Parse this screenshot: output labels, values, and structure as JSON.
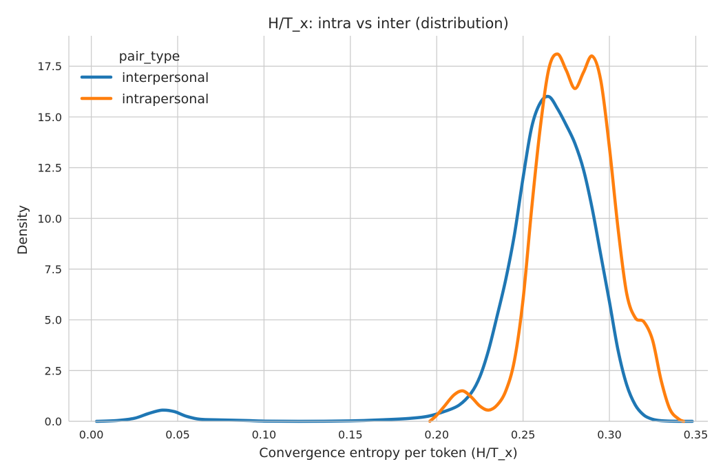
{
  "chart_data": {
    "type": "line",
    "title": "H/T_x: intra vs inter (distribution)",
    "xlabel": "Convergence entropy per token (H/T_x)",
    "ylabel": "Density",
    "xlim": [
      -0.013,
      0.357
    ],
    "ylim": [
      0,
      19.0
    ],
    "x_ticks": [
      0.0,
      0.05,
      0.1,
      0.15,
      0.2,
      0.25,
      0.3,
      0.35
    ],
    "x_tick_labels": [
      "0.00",
      "0.05",
      "0.10",
      "0.15",
      "0.20",
      "0.25",
      "0.30",
      "0.35"
    ],
    "y_ticks": [
      0.0,
      2.5,
      5.0,
      7.5,
      10.0,
      12.5,
      15.0,
      17.5
    ],
    "y_tick_labels": [
      "0.0",
      "2.5",
      "5.0",
      "7.5",
      "10.0",
      "12.5",
      "15.0",
      "17.5"
    ],
    "grid": true,
    "legend": {
      "title": "pair_type",
      "placement": "top-left"
    },
    "series": [
      {
        "name": "interpersonal",
        "color": "#1f77b4",
        "points": [
          [
            0.003,
            0.0
          ],
          [
            0.015,
            0.04
          ],
          [
            0.025,
            0.15
          ],
          [
            0.033,
            0.38
          ],
          [
            0.041,
            0.55
          ],
          [
            0.048,
            0.48
          ],
          [
            0.055,
            0.25
          ],
          [
            0.063,
            0.1
          ],
          [
            0.075,
            0.07
          ],
          [
            0.09,
            0.04
          ],
          [
            0.1,
            0.01
          ],
          [
            0.12,
            0.0
          ],
          [
            0.15,
            0.02
          ],
          [
            0.17,
            0.08
          ],
          [
            0.185,
            0.15
          ],
          [
            0.195,
            0.25
          ],
          [
            0.205,
            0.5
          ],
          [
            0.213,
            0.8
          ],
          [
            0.22,
            1.4
          ],
          [
            0.225,
            2.2
          ],
          [
            0.23,
            3.5
          ],
          [
            0.235,
            5.2
          ],
          [
            0.24,
            7.0
          ],
          [
            0.245,
            9.2
          ],
          [
            0.25,
            12.0
          ],
          [
            0.255,
            14.5
          ],
          [
            0.26,
            15.7
          ],
          [
            0.265,
            16.0
          ],
          [
            0.27,
            15.4
          ],
          [
            0.275,
            14.6
          ],
          [
            0.28,
            13.7
          ],
          [
            0.285,
            12.4
          ],
          [
            0.29,
            10.5
          ],
          [
            0.295,
            8.2
          ],
          [
            0.3,
            5.9
          ],
          [
            0.305,
            3.5
          ],
          [
            0.31,
            1.8
          ],
          [
            0.315,
            0.8
          ],
          [
            0.32,
            0.3
          ],
          [
            0.325,
            0.1
          ],
          [
            0.33,
            0.03
          ],
          [
            0.34,
            0.0
          ],
          [
            0.348,
            0.0
          ]
        ]
      },
      {
        "name": "intrapersonal",
        "color": "#ff7f0e",
        "points": [
          [
            0.196,
            0.0
          ],
          [
            0.2,
            0.3
          ],
          [
            0.205,
            0.8
          ],
          [
            0.21,
            1.3
          ],
          [
            0.215,
            1.5
          ],
          [
            0.22,
            1.2
          ],
          [
            0.225,
            0.75
          ],
          [
            0.23,
            0.55
          ],
          [
            0.235,
            0.8
          ],
          [
            0.24,
            1.5
          ],
          [
            0.245,
            3.0
          ],
          [
            0.25,
            6.0
          ],
          [
            0.255,
            10.5
          ],
          [
            0.26,
            14.5
          ],
          [
            0.265,
            17.4
          ],
          [
            0.27,
            18.1
          ],
          [
            0.275,
            17.3
          ],
          [
            0.28,
            16.4
          ],
          [
            0.285,
            17.2
          ],
          [
            0.29,
            18.0
          ],
          [
            0.295,
            16.8
          ],
          [
            0.3,
            13.5
          ],
          [
            0.305,
            9.5
          ],
          [
            0.31,
            6.3
          ],
          [
            0.315,
            5.1
          ],
          [
            0.32,
            4.9
          ],
          [
            0.325,
            4.0
          ],
          [
            0.33,
            2.0
          ],
          [
            0.335,
            0.6
          ],
          [
            0.34,
            0.12
          ],
          [
            0.343,
            0.0
          ]
        ]
      }
    ]
  }
}
